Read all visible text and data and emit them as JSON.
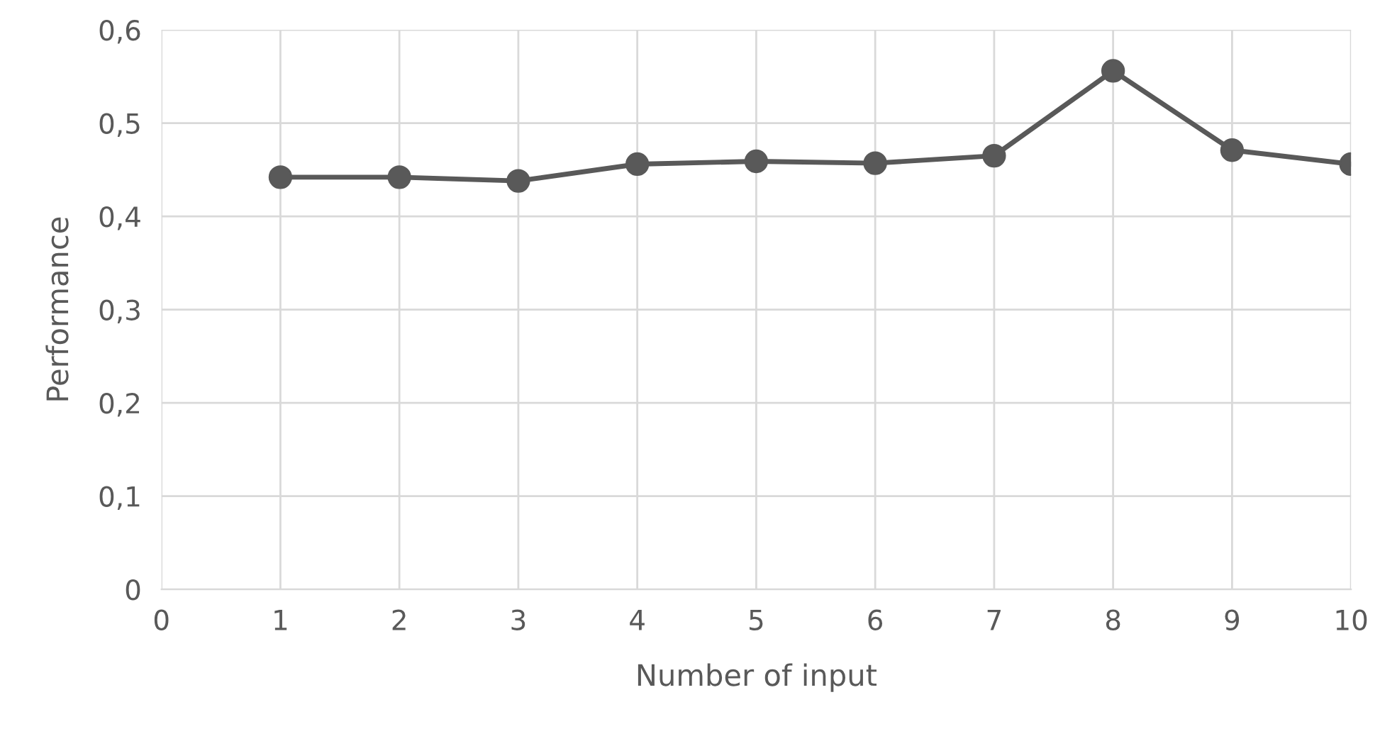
{
  "chart_data": {
    "type": "line",
    "xlabel": "Number of input",
    "ylabel": "Performance",
    "x": [
      1,
      2,
      3,
      4,
      5,
      6,
      7,
      8,
      9,
      10
    ],
    "series": [
      {
        "color": "#595959",
        "values": [
          0.442,
          0.442,
          0.438,
          0.456,
          0.459,
          0.457,
          0.465,
          0.556,
          0.471,
          0.456
        ]
      }
    ],
    "xlim": [
      0,
      10
    ],
    "xticks": [
      0,
      1,
      2,
      3,
      4,
      5,
      6,
      7,
      8,
      9,
      10
    ],
    "ylim": [
      0,
      0.6
    ],
    "yticks": [
      {
        "value": 0,
        "label": "0"
      },
      {
        "value": 0.1,
        "label": "0,1"
      },
      {
        "value": 0.2,
        "label": "0,2"
      },
      {
        "value": 0.3,
        "label": "0,3"
      },
      {
        "value": 0.4,
        "label": "0,4"
      },
      {
        "value": 0.5,
        "label": "0,5"
      },
      {
        "value": 0.6,
        "label": "0,6"
      }
    ],
    "grid": true,
    "marker": "circle",
    "line_style": "solid"
  }
}
